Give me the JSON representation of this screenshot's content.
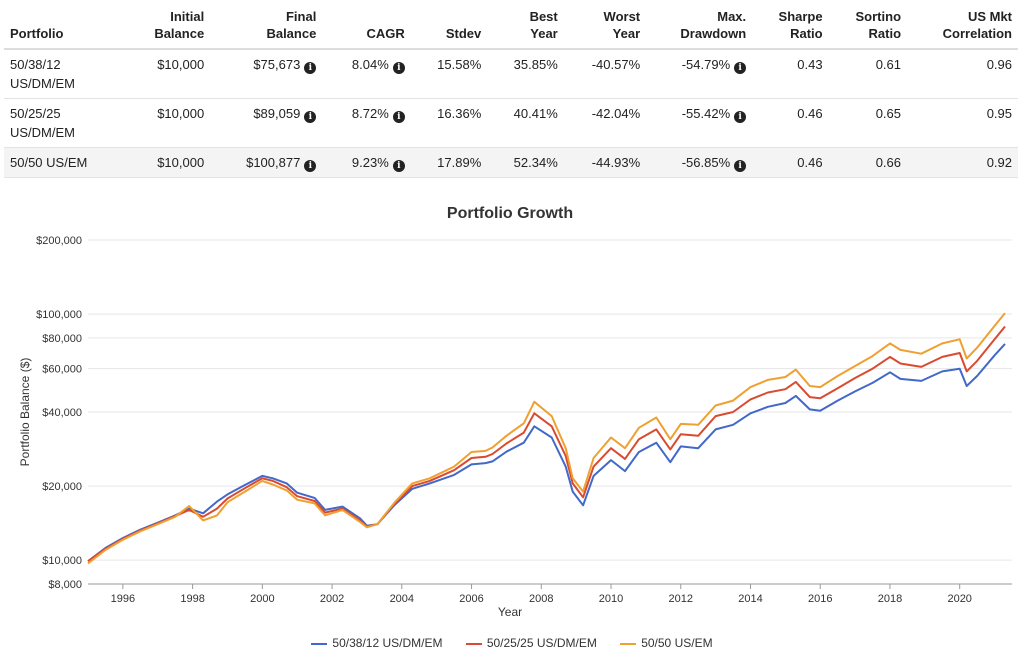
{
  "table": {
    "headers": {
      "portfolio": "Portfolio",
      "initial": [
        "Initial",
        "Balance"
      ],
      "final": [
        "Final",
        "Balance"
      ],
      "cagr": "CAGR",
      "stdev": "Stdev",
      "best": [
        "Best",
        "Year"
      ],
      "worst": [
        "Worst",
        "Year"
      ],
      "drawdown": [
        "Max.",
        "Drawdown"
      ],
      "sharpe": [
        "Sharpe",
        "Ratio"
      ],
      "sortino": [
        "Sortino",
        "Ratio"
      ],
      "corr": [
        "US Mkt",
        "Correlation"
      ]
    },
    "rows": [
      {
        "name": [
          "50/38/12",
          "US/DM/EM"
        ],
        "initial": "$10,000",
        "final": "$75,673",
        "cagr": "8.04%",
        "stdev": "15.58%",
        "best": "35.85%",
        "worst": "-40.57%",
        "drawdown": "-54.79%",
        "sharpe": "0.43",
        "sortino": "0.61",
        "corr": "0.96"
      },
      {
        "name": [
          "50/25/25",
          "US/DM/EM"
        ],
        "initial": "$10,000",
        "final": "$89,059",
        "cagr": "8.72%",
        "stdev": "16.36%",
        "best": "40.41%",
        "worst": "-42.04%",
        "drawdown": "-55.42%",
        "sharpe": "0.46",
        "sortino": "0.65",
        "corr": "0.95"
      },
      {
        "name": [
          "50/50 US/EM",
          ""
        ],
        "initial": "$10,000",
        "final": "$100,877",
        "cagr": "9.23%",
        "stdev": "17.89%",
        "best": "52.34%",
        "worst": "-44.93%",
        "drawdown": "-56.85%",
        "sharpe": "0.46",
        "sortino": "0.66",
        "corr": "0.92"
      }
    ],
    "info_glyph": "i"
  },
  "chart_data": {
    "type": "line",
    "title": "Portfolio Growth",
    "xlabel": "Year",
    "ylabel": "Portfolio Balance ($)",
    "y_scale": "log",
    "ylim": [
      8000,
      200000
    ],
    "xlim": [
      1995.0,
      2021.5
    ],
    "y_ticks": [
      8000,
      10000,
      20000,
      40000,
      60000,
      80000,
      100000,
      200000
    ],
    "y_tick_labels": [
      "$8,000",
      "$10,000",
      "$20,000",
      "$40,000",
      "$60,000",
      "$80,000",
      "$100,000",
      "$200,000"
    ],
    "x_ticks": [
      1996,
      1998,
      2000,
      2002,
      2004,
      2006,
      2008,
      2010,
      2012,
      2014,
      2016,
      2018,
      2020
    ],
    "x_tick_labels": [
      "1996",
      "1998",
      "2000",
      "2002",
      "2004",
      "2006",
      "2008",
      "2010",
      "2012",
      "2014",
      "2016",
      "2018",
      "2020"
    ],
    "grid": true,
    "legend_position": "bottom-center",
    "x": [
      1995.0,
      1995.5,
      1996.0,
      1996.5,
      1997.0,
      1997.5,
      1997.9,
      1998.3,
      1998.7,
      1999.0,
      1999.5,
      2000.0,
      2000.3,
      2000.7,
      2001.0,
      2001.5,
      2001.8,
      2002.3,
      2002.8,
      2003.0,
      2003.3,
      2003.8,
      2004.3,
      2004.8,
      2005.5,
      2006.0,
      2006.4,
      2006.6,
      2007.0,
      2007.5,
      2007.8,
      2008.3,
      2008.7,
      2008.9,
      2009.2,
      2009.5,
      2010.0,
      2010.4,
      2010.8,
      2011.3,
      2011.7,
      2012.0,
      2012.5,
      2013.0,
      2013.5,
      2014.0,
      2014.5,
      2015.0,
      2015.3,
      2015.7,
      2016.0,
      2016.5,
      2017.0,
      2017.5,
      2018.0,
      2018.3,
      2018.9,
      2019.5,
      2020.0,
      2020.2,
      2020.5,
      2021.0,
      2021.3
    ],
    "series": [
      {
        "name": "50/38/12 US/DM/EM",
        "color": "#4169c9",
        "values": [
          9900,
          11200,
          12300,
          13300,
          14200,
          15200,
          16200,
          15500,
          17300,
          18500,
          20200,
          22000,
          21500,
          20500,
          18800,
          17900,
          16000,
          16500,
          14800,
          13800,
          14000,
          16800,
          19500,
          20500,
          22200,
          24500,
          24800,
          25200,
          27600,
          30000,
          35000,
          31500,
          24000,
          19000,
          16700,
          22000,
          25500,
          23000,
          27500,
          30000,
          25000,
          29000,
          28500,
          34000,
          35500,
          39500,
          42000,
          43500,
          46500,
          41000,
          40500,
          44500,
          48500,
          52500,
          58000,
          54500,
          53500,
          58500,
          60000,
          51000,
          56000,
          68000,
          75673
        ]
      },
      {
        "name": "50/25/25 US/DM/EM",
        "color": "#d94a30",
        "values": [
          9900,
          11100,
          12200,
          13200,
          14100,
          15100,
          16000,
          15000,
          16200,
          17800,
          19600,
          21500,
          21000,
          19800,
          18200,
          17400,
          15600,
          16200,
          14500,
          13700,
          14000,
          17000,
          20000,
          21000,
          23200,
          26000,
          26300,
          27000,
          29800,
          33000,
          39500,
          35000,
          26500,
          20500,
          18000,
          24000,
          28500,
          25800,
          31000,
          34000,
          28200,
          32500,
          32000,
          38500,
          40000,
          45000,
          48000,
          49500,
          53000,
          46000,
          45500,
          50000,
          55000,
          60000,
          67000,
          63000,
          61000,
          67000,
          69500,
          58500,
          64500,
          79000,
          89059
        ]
      },
      {
        "name": "50/50 US/EM",
        "color": "#f0a030",
        "values": [
          9700,
          11000,
          12100,
          13100,
          14000,
          15000,
          16600,
          14500,
          15200,
          17200,
          19000,
          21000,
          20300,
          19200,
          17600,
          17000,
          15200,
          16000,
          14300,
          13600,
          14000,
          17200,
          20500,
          21500,
          24000,
          27500,
          27800,
          28700,
          32000,
          36000,
          44000,
          38500,
          28500,
          21500,
          19000,
          26000,
          31500,
          28500,
          34500,
          38000,
          31000,
          35800,
          35500,
          42500,
          44500,
          50500,
          54000,
          55500,
          59500,
          51000,
          50500,
          56000,
          61500,
          67500,
          76000,
          71500,
          69000,
          76000,
          79000,
          66000,
          73000,
          89500,
          100877
        ]
      }
    ]
  }
}
